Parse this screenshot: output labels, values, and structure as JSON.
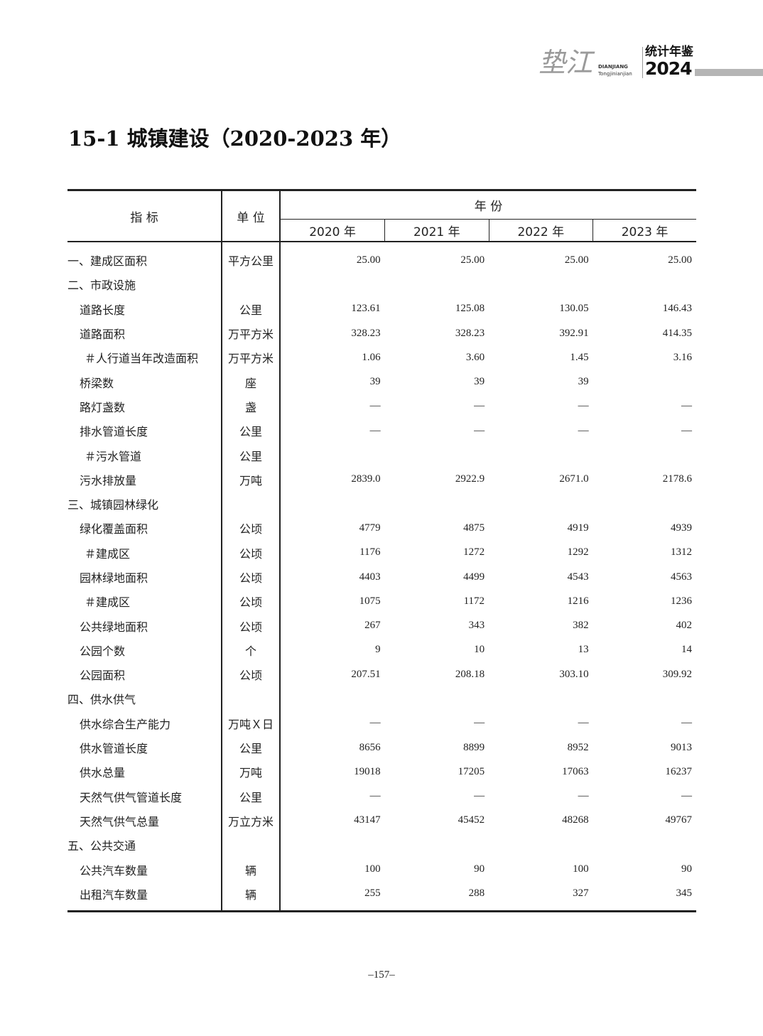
{
  "header": {
    "logo_brush": "垫江",
    "logo_pinyin_1": "DIANJIANG",
    "logo_pinyin_2": "Tongjinianjian",
    "logo_title": "统计年鉴",
    "logo_year": "2024"
  },
  "title": "15-1  城镇建设（2020-2023 年）",
  "table": {
    "col_indicator": "指  标",
    "col_unit": "单 位",
    "col_year_group": "年  份",
    "years": [
      "2020 年",
      "2021 年",
      "2022 年",
      "2023 年"
    ],
    "rows": [
      {
        "label": "一、建成区面积",
        "level": 0,
        "unit": "平方公里",
        "values": [
          "25.00",
          "25.00",
          "25.00",
          "25.00"
        ]
      },
      {
        "label": "二、市政设施",
        "level": 0,
        "unit": "",
        "values": [
          "",
          "",
          "",
          ""
        ]
      },
      {
        "label": "道路长度",
        "level": 1,
        "unit": "公里",
        "values": [
          "123.61",
          "125.08",
          "130.05",
          "146.43"
        ]
      },
      {
        "label": "道路面积",
        "level": 1,
        "unit": "万平方米",
        "values": [
          "328.23",
          "328.23",
          "392.91",
          "414.35"
        ]
      },
      {
        "label": "＃人行道当年改造面积",
        "level": 2,
        "unit": "万平方米",
        "values": [
          "1.06",
          "3.60",
          "1.45",
          "3.16"
        ]
      },
      {
        "label": "桥梁数",
        "level": 1,
        "unit": "座",
        "values": [
          "39",
          "39",
          "39",
          ""
        ]
      },
      {
        "label": "路灯盏数",
        "level": 1,
        "unit": "盏",
        "values": [
          "—",
          "—",
          "—",
          "—"
        ]
      },
      {
        "label": "排水管道长度",
        "level": 1,
        "unit": "公里",
        "values": [
          "—",
          "—",
          "—",
          "—"
        ]
      },
      {
        "label": "＃污水管道",
        "level": 2,
        "unit": "公里",
        "values": [
          "",
          "",
          "",
          ""
        ]
      },
      {
        "label": "污水排放量",
        "level": 1,
        "unit": "万吨",
        "values": [
          "2839.0",
          "2922.9",
          "2671.0",
          "2178.6"
        ]
      },
      {
        "label": "三、城镇园林绿化",
        "level": 0,
        "unit": "",
        "values": [
          "",
          "",
          "",
          ""
        ]
      },
      {
        "label": "绿化覆盖面积",
        "level": 1,
        "unit": "公顷",
        "values": [
          "4779",
          "4875",
          "4919",
          "4939"
        ]
      },
      {
        "label": "＃建成区",
        "level": 2,
        "unit": "公顷",
        "values": [
          "1176",
          "1272",
          "1292",
          "1312"
        ]
      },
      {
        "label": "园林绿地面积",
        "level": 1,
        "unit": "公顷",
        "values": [
          "4403",
          "4499",
          "4543",
          "4563"
        ]
      },
      {
        "label": "＃建成区",
        "level": 2,
        "unit": "公顷",
        "values": [
          "1075",
          "1172",
          "1216",
          "1236"
        ]
      },
      {
        "label": "公共绿地面积",
        "level": 1,
        "unit": "公顷",
        "values": [
          "267",
          "343",
          "382",
          "402"
        ]
      },
      {
        "label": "公园个数",
        "level": 1,
        "unit": "个",
        "values": [
          "9",
          "10",
          "13",
          "14"
        ]
      },
      {
        "label": "公园面积",
        "level": 1,
        "unit": "公顷",
        "values": [
          "207.51",
          "208.18",
          "303.10",
          "309.92"
        ]
      },
      {
        "label": "四、供水供气",
        "level": 0,
        "unit": "",
        "values": [
          "",
          "",
          "",
          ""
        ]
      },
      {
        "label": "供水综合生产能力",
        "level": 1,
        "unit": "万吨Ｘ日",
        "values": [
          "—",
          "—",
          "—",
          "—"
        ]
      },
      {
        "label": "供水管道长度",
        "level": 1,
        "unit": "公里",
        "values": [
          "8656",
          "8899",
          "8952",
          "9013"
        ]
      },
      {
        "label": "供水总量",
        "level": 1,
        "unit": "万吨",
        "values": [
          "19018",
          "17205",
          "17063",
          "16237"
        ]
      },
      {
        "label": "天然气供气管道长度",
        "level": 1,
        "unit": "公里",
        "values": [
          "—",
          "—",
          "—",
          "—"
        ]
      },
      {
        "label": "天然气供气总量",
        "level": 1,
        "unit": "万立方米",
        "values": [
          "43147",
          "45452",
          "48268",
          "49767"
        ]
      },
      {
        "label": "五、公共交通",
        "level": 0,
        "unit": "",
        "values": [
          "",
          "",
          "",
          ""
        ]
      },
      {
        "label": "公共汽车数量",
        "level": 1,
        "unit": "辆",
        "values": [
          "100",
          "90",
          "100",
          "90"
        ]
      },
      {
        "label": "出租汽车数量",
        "level": 1,
        "unit": "辆",
        "values": [
          "255",
          "288",
          "327",
          "345"
        ]
      }
    ]
  },
  "page_number": "–157–"
}
